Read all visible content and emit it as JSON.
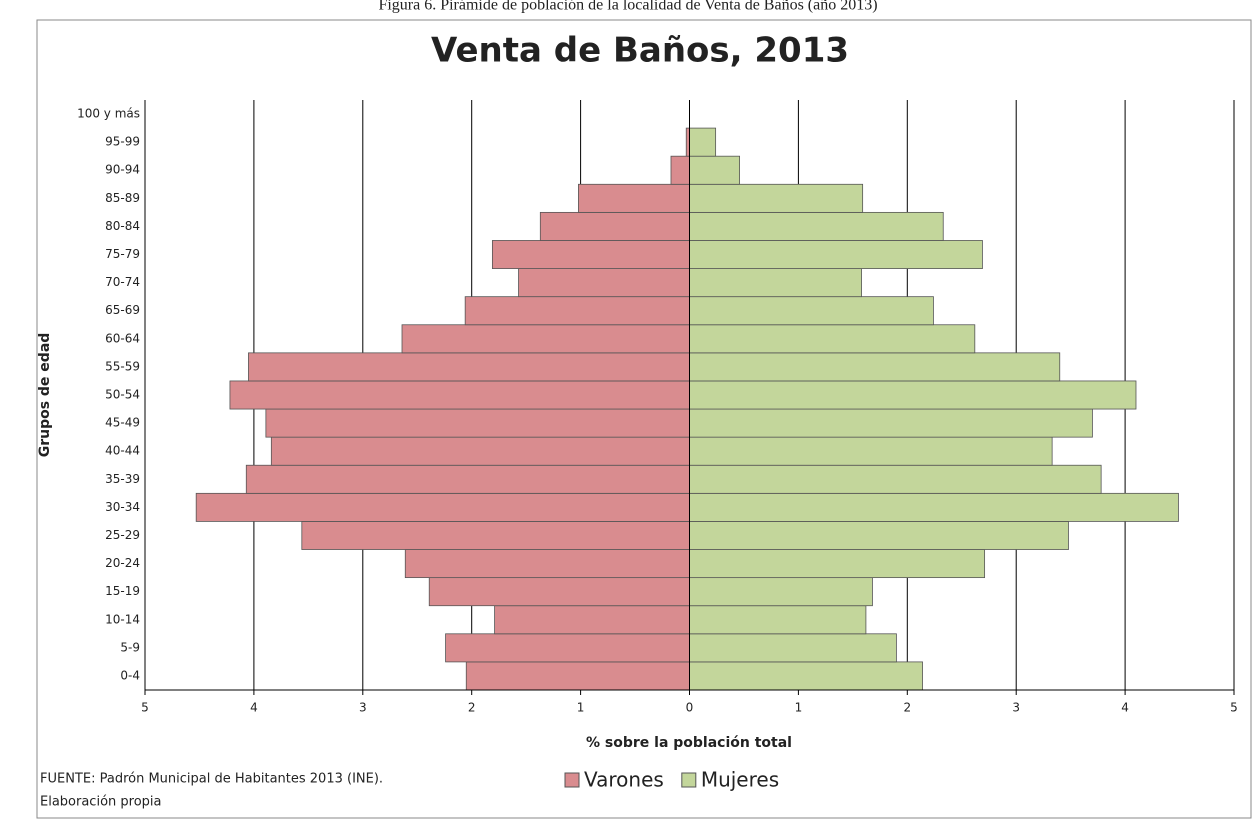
{
  "chart_data": {
    "type": "pyramid",
    "caption": "Figura 6. Pirámide de población de la localidad de Venta de Baños (año 2013)",
    "title": "Venta de Baños, 2013",
    "x_label": "% sobre la población total",
    "y_label": "Grupos de edad",
    "source": [
      "FUENTE: Padrón Municipal de Habitantes  2013 (INE).",
      "Elaboración propia"
    ],
    "categories": [
      "0-4",
      "5-9",
      "10-14",
      "15-19",
      "20-24",
      "25-29",
      "30-34",
      "35-39",
      "40-44",
      "45-49",
      "50-54",
      "55-59",
      "60-64",
      "65-69",
      "70-74",
      "75-79",
      "80-84",
      "85-89",
      "90-94",
      "95-99",
      "100 y más"
    ],
    "series": [
      {
        "name": "Varones",
        "color": "#d98c8f",
        "values": [
          -2.05,
          -2.24,
          -1.79,
          -2.39,
          -2.61,
          -3.56,
          -4.53,
          -4.07,
          -3.84,
          -3.89,
          -4.22,
          -4.05,
          -2.64,
          -2.06,
          -1.57,
          -1.81,
          -1.37,
          -1.02,
          -0.17,
          -0.03,
          0
        ]
      },
      {
        "name": "Mujeres",
        "color": "#c3d69b",
        "values": [
          2.14,
          1.9,
          1.62,
          1.68,
          2.71,
          3.48,
          4.49,
          3.78,
          3.33,
          3.7,
          4.1,
          3.4,
          2.62,
          2.24,
          1.58,
          2.69,
          2.33,
          1.59,
          0.46,
          0.24,
          0
        ]
      }
    ],
    "xlim": [
      -5,
      5
    ],
    "xticks": [
      {
        "value": -5,
        "label": "5"
      },
      {
        "value": -4,
        "label": "4"
      },
      {
        "value": -3,
        "label": "3"
      },
      {
        "value": -2,
        "label": "2"
      },
      {
        "value": -1,
        "label": "1"
      },
      0,
      1,
      2,
      3,
      4,
      5
    ],
    "grid": true,
    "legend": "bottom"
  }
}
